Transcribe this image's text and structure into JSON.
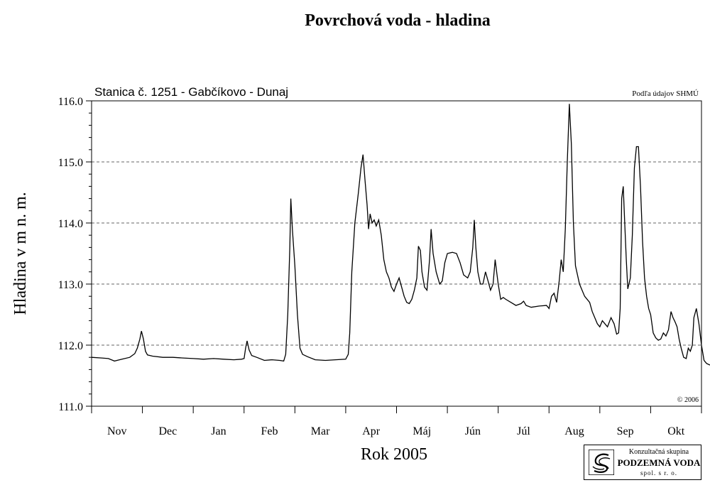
{
  "chart_data": {
    "type": "line",
    "title": "Povrchová voda - hladina",
    "subtitle": "Stanica č. 1251 - Gabčíkovo - Dunaj",
    "source_note": "Podľa údajov SHMÚ",
    "copyright": "© 2006",
    "xlabel": "Rok 2005",
    "ylabel": "Hladina v m n. m.",
    "ylim": [
      111.0,
      116.0
    ],
    "yticks": [
      "111.0",
      "112.0",
      "113.0",
      "114.0",
      "115.0",
      "116.0"
    ],
    "months": [
      "Nov",
      "Dec",
      "Jan",
      "Feb",
      "Mar",
      "Apr",
      "Máj",
      "Jún",
      "Júl",
      "Aug",
      "Sep",
      "Okt"
    ],
    "grid": "dashed horizontal",
    "series": [
      {
        "x_unit": "month index from start of Nov (0-12)",
        "points": [
          [
            0.0,
            111.8
          ],
          [
            0.2,
            111.79
          ],
          [
            0.33,
            111.78
          ],
          [
            0.45,
            111.74
          ],
          [
            0.6,
            111.77
          ],
          [
            0.75,
            111.8
          ],
          [
            0.85,
            111.86
          ],
          [
            0.9,
            111.95
          ],
          [
            0.95,
            112.1
          ],
          [
            0.98,
            112.23
          ],
          [
            1.02,
            112.1
          ],
          [
            1.06,
            111.9
          ],
          [
            1.1,
            111.84
          ],
          [
            1.2,
            111.82
          ],
          [
            1.4,
            111.8
          ],
          [
            1.6,
            111.8
          ],
          [
            1.8,
            111.79
          ],
          [
            2.0,
            111.78
          ],
          [
            2.2,
            111.77
          ],
          [
            2.4,
            111.78
          ],
          [
            2.6,
            111.77
          ],
          [
            2.8,
            111.76
          ],
          [
            2.95,
            111.77
          ],
          [
            3.0,
            111.78
          ],
          [
            3.03,
            111.95
          ],
          [
            3.06,
            112.07
          ],
          [
            3.1,
            111.92
          ],
          [
            3.15,
            111.83
          ],
          [
            3.25,
            111.8
          ],
          [
            3.4,
            111.75
          ],
          [
            3.55,
            111.76
          ],
          [
            3.7,
            111.75
          ],
          [
            3.78,
            111.74
          ],
          [
            3.82,
            111.85
          ],
          [
            3.86,
            112.5
          ],
          [
            3.9,
            113.6
          ],
          [
            3.92,
            114.4
          ],
          [
            3.95,
            113.9
          ],
          [
            4.0,
            113.3
          ],
          [
            4.05,
            112.5
          ],
          [
            4.1,
            111.95
          ],
          [
            4.15,
            111.85
          ],
          [
            4.25,
            111.81
          ],
          [
            4.4,
            111.76
          ],
          [
            4.6,
            111.75
          ],
          [
            4.8,
            111.76
          ],
          [
            5.0,
            111.77
          ],
          [
            5.05,
            111.85
          ],
          [
            5.08,
            112.2
          ],
          [
            5.12,
            113.2
          ],
          [
            5.18,
            114.0
          ],
          [
            5.25,
            114.5
          ],
          [
            5.3,
            114.9
          ],
          [
            5.34,
            115.12
          ],
          [
            5.38,
            114.7
          ],
          [
            5.42,
            114.3
          ],
          [
            5.45,
            113.9
          ],
          [
            5.48,
            114.15
          ],
          [
            5.52,
            114.0
          ],
          [
            5.56,
            114.05
          ],
          [
            5.6,
            113.95
          ],
          [
            5.65,
            114.05
          ],
          [
            5.7,
            113.8
          ],
          [
            5.75,
            113.4
          ],
          [
            5.8,
            113.2
          ],
          [
            5.85,
            113.1
          ],
          [
            5.9,
            112.95
          ],
          [
            5.95,
            112.88
          ],
          [
            6.0,
            113.0
          ],
          [
            6.05,
            113.1
          ],
          [
            6.1,
            112.95
          ],
          [
            6.15,
            112.8
          ],
          [
            6.2,
            112.7
          ],
          [
            6.25,
            112.68
          ],
          [
            6.3,
            112.75
          ],
          [
            6.35,
            112.9
          ],
          [
            6.4,
            113.1
          ],
          [
            6.43,
            113.62
          ],
          [
            6.47,
            113.55
          ],
          [
            6.5,
            113.2
          ],
          [
            6.55,
            112.95
          ],
          [
            6.6,
            112.9
          ],
          [
            6.65,
            113.4
          ],
          [
            6.68,
            113.9
          ],
          [
            6.72,
            113.5
          ],
          [
            6.78,
            113.2
          ],
          [
            6.85,
            113.0
          ],
          [
            6.9,
            113.05
          ],
          [
            6.95,
            113.35
          ],
          [
            7.0,
            113.5
          ],
          [
            7.1,
            113.52
          ],
          [
            7.18,
            113.5
          ],
          [
            7.25,
            113.35
          ],
          [
            7.32,
            113.15
          ],
          [
            7.4,
            113.1
          ],
          [
            7.45,
            113.2
          ],
          [
            7.5,
            113.6
          ],
          [
            7.53,
            114.05
          ],
          [
            7.56,
            113.6
          ],
          [
            7.6,
            113.2
          ],
          [
            7.65,
            113.0
          ],
          [
            7.7,
            113.0
          ],
          [
            7.75,
            113.2
          ],
          [
            7.8,
            113.05
          ],
          [
            7.85,
            112.9
          ],
          [
            7.9,
            113.0
          ],
          [
            7.94,
            113.4
          ],
          [
            7.97,
            113.2
          ],
          [
            8.0,
            113.0
          ],
          [
            8.05,
            112.75
          ],
          [
            8.1,
            112.78
          ],
          [
            8.15,
            112.75
          ],
          [
            8.25,
            112.7
          ],
          [
            8.35,
            112.65
          ],
          [
            8.45,
            112.68
          ],
          [
            8.5,
            112.72
          ],
          [
            8.55,
            112.65
          ],
          [
            8.65,
            112.62
          ],
          [
            8.8,
            112.64
          ],
          [
            8.95,
            112.65
          ],
          [
            9.0,
            112.6
          ],
          [
            9.05,
            112.8
          ],
          [
            9.1,
            112.85
          ],
          [
            9.15,
            112.7
          ],
          [
            9.2,
            113.05
          ],
          [
            9.24,
            113.4
          ],
          [
            9.28,
            113.2
          ],
          [
            9.32,
            113.9
          ],
          [
            9.36,
            115.0
          ],
          [
            9.4,
            115.95
          ],
          [
            9.44,
            115.3
          ],
          [
            9.48,
            114.0
          ],
          [
            9.52,
            113.3
          ],
          [
            9.6,
            113.0
          ],
          [
            9.7,
            112.8
          ],
          [
            9.8,
            112.7
          ],
          [
            9.85,
            112.55
          ],
          [
            9.9,
            112.45
          ],
          [
            9.95,
            112.35
          ],
          [
            10.0,
            112.3
          ],
          [
            10.05,
            112.4
          ],
          [
            10.1,
            112.35
          ],
          [
            10.15,
            112.3
          ],
          [
            10.22,
            112.45
          ],
          [
            10.28,
            112.35
          ],
          [
            10.33,
            112.18
          ],
          [
            10.37,
            112.2
          ],
          [
            10.4,
            112.6
          ],
          [
            10.43,
            114.4
          ],
          [
            10.46,
            114.6
          ],
          [
            10.49,
            114.0
          ],
          [
            10.52,
            113.4
          ],
          [
            10.55,
            112.92
          ],
          [
            10.6,
            113.1
          ],
          [
            10.64,
            113.8
          ],
          [
            10.68,
            114.9
          ],
          [
            10.72,
            115.25
          ],
          [
            10.76,
            115.25
          ],
          [
            10.8,
            114.6
          ],
          [
            10.84,
            113.7
          ],
          [
            10.88,
            113.1
          ],
          [
            10.92,
            112.8
          ],
          [
            10.96,
            112.6
          ],
          [
            11.0,
            112.5
          ],
          [
            11.05,
            112.2
          ],
          [
            11.1,
            112.12
          ],
          [
            11.15,
            112.08
          ],
          [
            11.2,
            112.1
          ],
          [
            11.25,
            112.2
          ],
          [
            11.3,
            112.15
          ],
          [
            11.35,
            112.25
          ],
          [
            11.4,
            112.55
          ],
          [
            11.44,
            112.45
          ],
          [
            11.48,
            112.38
          ],
          [
            11.52,
            112.3
          ],
          [
            11.56,
            112.1
          ],
          [
            11.6,
            111.95
          ],
          [
            11.65,
            111.8
          ],
          [
            11.7,
            111.78
          ],
          [
            11.74,
            111.95
          ],
          [
            11.78,
            111.9
          ],
          [
            11.82,
            112.0
          ],
          [
            11.85,
            112.45
          ],
          [
            11.9,
            112.6
          ],
          [
            11.95,
            112.35
          ],
          [
            12.0,
            112.0
          ],
          [
            12.05,
            111.75
          ],
          [
            12.1,
            111.7
          ],
          [
            12.15,
            111.68
          ],
          [
            12.22,
            111.66
          ],
          [
            12.3,
            111.7
          ],
          [
            12.4,
            111.73
          ],
          [
            12.5,
            111.72
          ],
          [
            12.6,
            111.74
          ],
          [
            12.7,
            111.73
          ],
          [
            12.8,
            111.72
          ]
        ]
      }
    ]
  },
  "logo": {
    "line1": "Konzultačná skupina",
    "line2": "PODZEMNÁ VODA",
    "line3": "spol. s r. o."
  }
}
